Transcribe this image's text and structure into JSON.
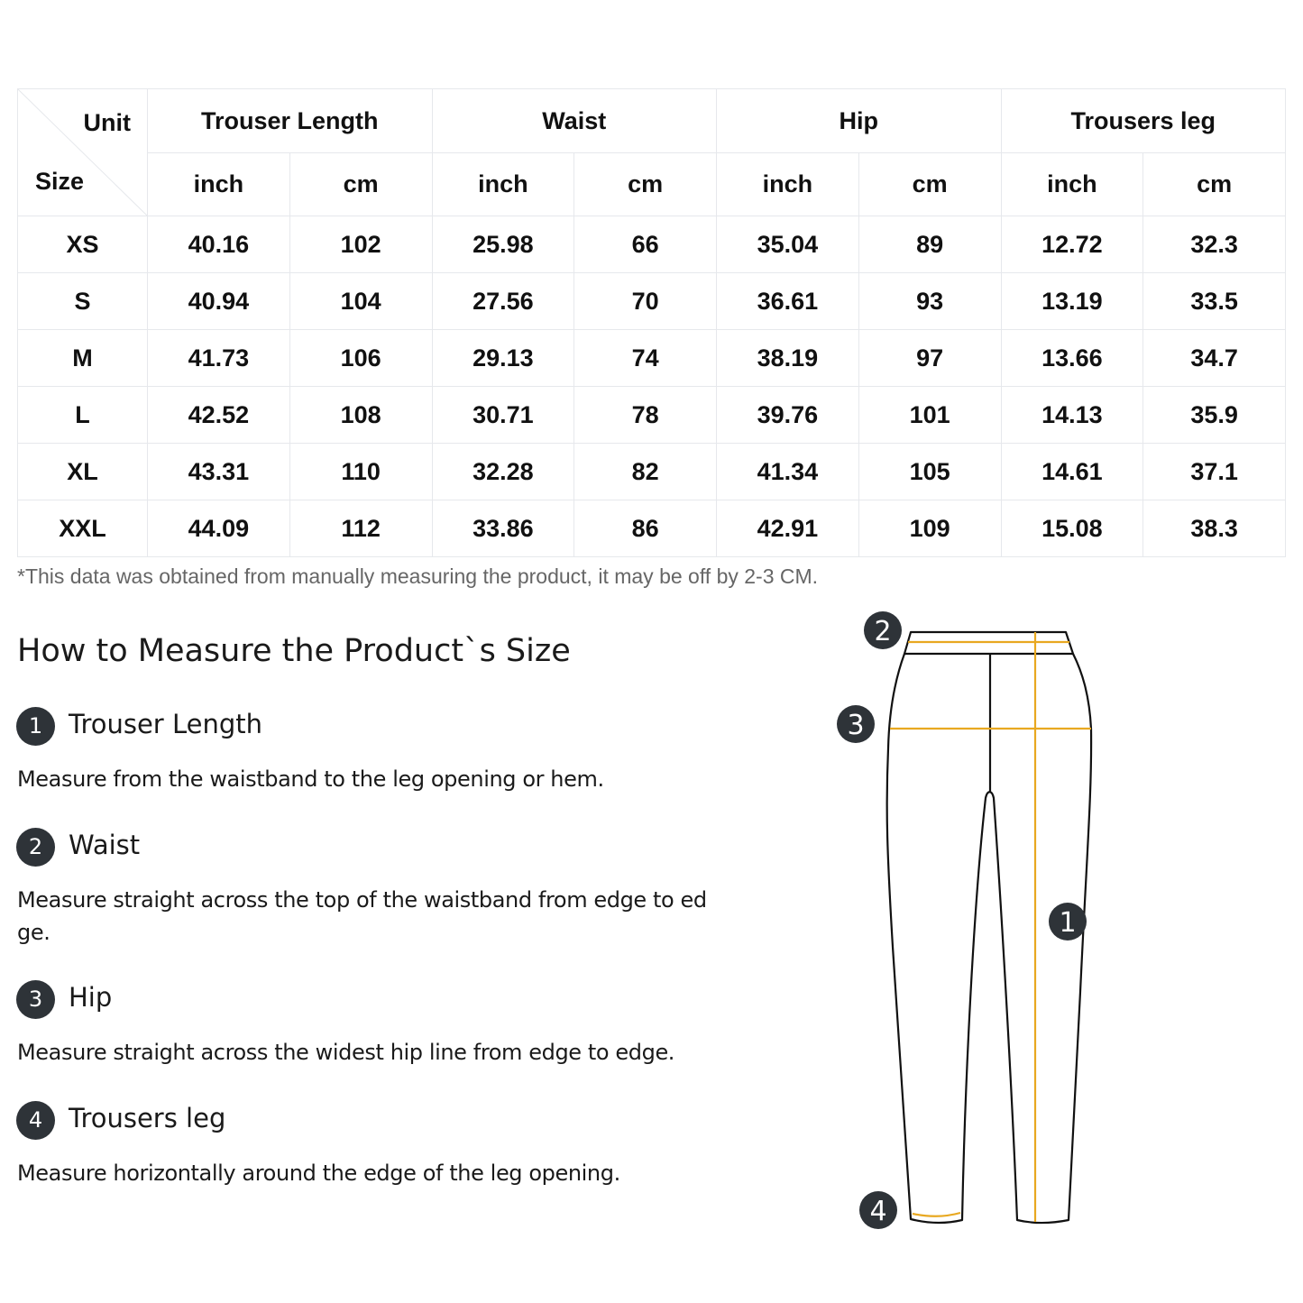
{
  "table": {
    "corner_unit": "Unit",
    "corner_size": "Size",
    "groups": [
      "Trouser Length",
      "Waist",
      "Hip",
      "Trousers leg"
    ],
    "units": [
      "inch",
      "cm",
      "inch",
      "cm",
      "inch",
      "cm",
      "inch",
      "cm"
    ],
    "rows": [
      {
        "size": "XS",
        "values": [
          "40.16",
          "102",
          "25.98",
          "66",
          "35.04",
          "89",
          "12.72",
          "32.3"
        ]
      },
      {
        "size": "S",
        "values": [
          "40.94",
          "104",
          "27.56",
          "70",
          "36.61",
          "93",
          "13.19",
          "33.5"
        ]
      },
      {
        "size": "M",
        "values": [
          "41.73",
          "106",
          "29.13",
          "74",
          "38.19",
          "97",
          "13.66",
          "34.7"
        ]
      },
      {
        "size": "L",
        "values": [
          "42.52",
          "108",
          "30.71",
          "78",
          "39.76",
          "101",
          "14.13",
          "35.9"
        ]
      },
      {
        "size": "XL",
        "values": [
          "43.31",
          "110",
          "32.28",
          "82",
          "41.34",
          "105",
          "14.61",
          "37.1"
        ]
      },
      {
        "size": "XXL",
        "values": [
          "44.09",
          "112",
          "33.86",
          "86",
          "42.91",
          "109",
          "15.08",
          "38.3"
        ]
      }
    ]
  },
  "note": "*This data was obtained from manually measuring the product, it may be off by 2-3 CM.",
  "howto": {
    "title": "How to Measure the Product`s Size",
    "items": [
      {
        "num": "1",
        "title": "Trouser Length",
        "desc": "Measure from the waistband to the leg opening or hem."
      },
      {
        "num": "2",
        "title": "Waist",
        "desc": "Measure straight across the top of the waistband from edge to ed ge."
      },
      {
        "num": "3",
        "title": "Hip",
        "desc": "Measure straight across the widest hip line from edge to edge."
      },
      {
        "num": "4",
        "title": "Trousers leg",
        "desc": "Measure horizontally around the edge of the leg opening."
      }
    ]
  },
  "diagram": {
    "markers": [
      "1",
      "2",
      "3",
      "4"
    ],
    "line_color": "#e8a820",
    "marker_color": "#2e3338"
  }
}
